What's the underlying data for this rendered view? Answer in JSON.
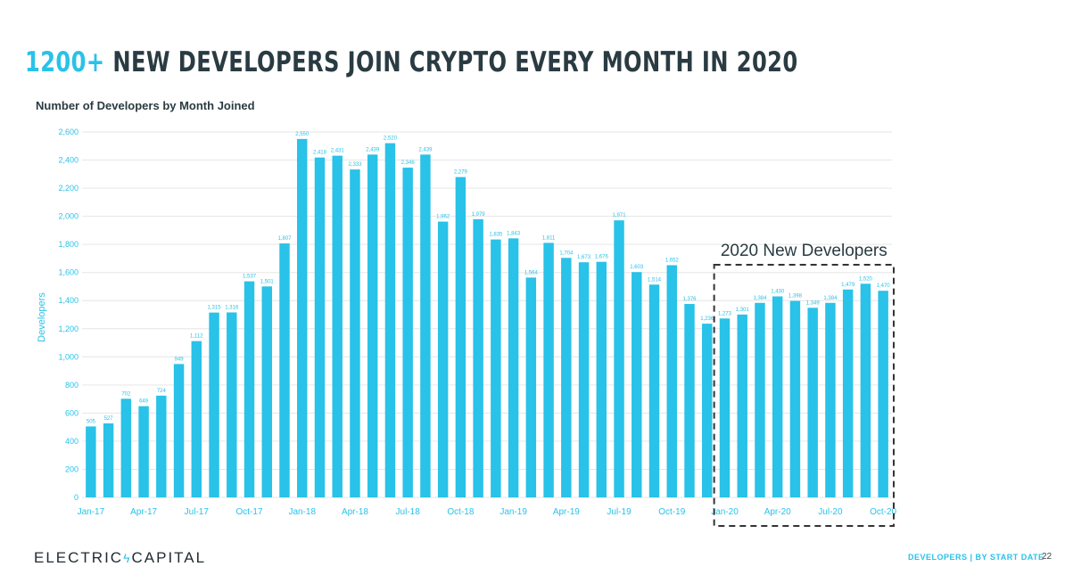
{
  "header": {
    "title_accent": "1200+",
    "title_rest": "NEW DEVELOPERS JOIN CRYPTO EVERY MONTH IN 2020"
  },
  "footer": {
    "brand_left": "ELECTRIC",
    "brand_right": "CAPITAL",
    "brand_icon": "lightning-bolt-icon",
    "label": "DEVELOPERS | BY START DATE",
    "page": "22"
  },
  "colors": {
    "bar": "#29c2e8",
    "accent": "#29c2e8",
    "title": "#2a3b42",
    "grid": "#e6e6e6"
  },
  "chart_data": {
    "type": "bar",
    "title": "Number of Developers by Month Joined",
    "ylabel": "Developers",
    "xlabel": "",
    "ylim": [
      0,
      2600
    ],
    "yticks": [
      "0",
      "200",
      "400",
      "600",
      "800",
      "1,000",
      "1,200",
      "1,400",
      "1,600",
      "1,800",
      "2,000",
      "2,200",
      "2,400",
      "2,600"
    ],
    "grid": true,
    "categories": [
      "Jan-17",
      "Feb-17",
      "Mar-17",
      "Apr-17",
      "May-17",
      "Jun-17",
      "Jul-17",
      "Aug-17",
      "Sep-17",
      "Oct-17",
      "Nov-17",
      "Dec-17",
      "Jan-18",
      "Feb-18",
      "Mar-18",
      "Apr-18",
      "May-18",
      "Jun-18",
      "Jul-18",
      "Aug-18",
      "Sep-18",
      "Oct-18",
      "Nov-18",
      "Dec-18",
      "Jan-19",
      "Feb-19",
      "Mar-19",
      "Apr-19",
      "May-19",
      "Jun-19",
      "Jul-19",
      "Aug-19",
      "Sep-19",
      "Oct-19",
      "Nov-19",
      "Dec-19",
      "Jan-20",
      "Feb-20",
      "Mar-20",
      "Apr-20",
      "May-20",
      "Jun-20",
      "Jul-20",
      "Aug-20",
      "Sep-20",
      "Oct-20"
    ],
    "xtick_labels_shown": [
      "Jan-17",
      "Apr-17",
      "Jul-17",
      "Oct-17",
      "Jan-18",
      "Apr-18",
      "Jul-18",
      "Oct-18",
      "Jan-19",
      "Apr-19",
      "Jul-19",
      "Oct-19",
      "Jan-20",
      "Apr-20",
      "Jul-20",
      "Oct-20"
    ],
    "values": [
      505,
      527,
      702,
      649,
      724,
      949,
      1112,
      1315,
      1316,
      1537,
      1501,
      1807,
      2550,
      2418,
      2431,
      2333,
      2439,
      2520,
      2346,
      2439,
      1962,
      2279,
      1979,
      1835,
      1843,
      1564,
      1811,
      1704,
      1673,
      1676,
      1971,
      1603,
      1514,
      1652,
      1376,
      1236,
      1273,
      1301,
      1384,
      1430,
      1398,
      1349,
      1384,
      1479,
      1520,
      1470
    ],
    "value_labels": [
      "505",
      "527",
      "702",
      "649",
      "724",
      "949",
      "1,112",
      "1,315",
      "1,316",
      "1,537",
      "1,501",
      "1,807",
      "2,550",
      "2,418",
      "2,431",
      "2,333",
      "2,439",
      "2,520",
      "2,346",
      "2,439",
      "1,962",
      "2,279",
      "1,979",
      "1,835",
      "1,843",
      "1,564",
      "1,811",
      "1,704",
      "1,673",
      "1,676",
      "1,971",
      "1,603",
      "1,514",
      "1,652",
      "1,376",
      "1,236",
      "1,273",
      "1,301",
      "1,384",
      "1,430",
      "1,398",
      "1,349",
      "1,384",
      "1,479",
      "1,520",
      "1,470"
    ],
    "annotations": [
      {
        "text": "2020 New Developers",
        "start_category": "Jan-20",
        "end_category": "Oct-20",
        "style": "dashed-box"
      }
    ]
  }
}
